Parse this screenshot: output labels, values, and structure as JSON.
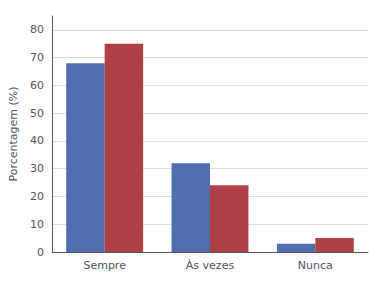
{
  "chart_data": {
    "type": "bar",
    "categories": [
      "Sempre",
      "Às vezes",
      "Nunca"
    ],
    "series": [
      {
        "color": "#4F6EAD",
        "values": [
          68,
          32,
          3
        ]
      },
      {
        "color": "#B04045",
        "values": [
          75,
          24,
          5
        ]
      }
    ],
    "ylabel": "Porcentagem (%)",
    "ylim": [
      0,
      85
    ],
    "yticks": [
      0,
      10,
      20,
      30,
      40,
      50,
      60,
      70,
      80
    ],
    "grid": true
  }
}
